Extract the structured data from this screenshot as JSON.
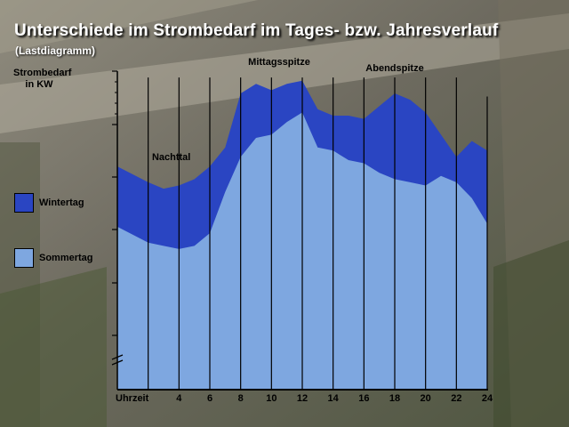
{
  "page": {
    "title": "Unterschiede im Strombedarf im Tages- bzw. Jahresverlauf",
    "subtitle": "(Lastdiagramm)"
  },
  "colors": {
    "winter": "#2a45c2",
    "summer": "#7ea7e0",
    "axis": "#000000"
  },
  "chart_data": {
    "type": "area",
    "ylabel": "Strombedarf in KW",
    "xlabel": "Uhrzeit",
    "xlim": [
      0,
      24
    ],
    "x_ticks": [
      4,
      6,
      8,
      10,
      12,
      14,
      16,
      18,
      20,
      22,
      24
    ],
    "grid": true,
    "legend_position": "left",
    "x": [
      0,
      2,
      3,
      4,
      5,
      6,
      7,
      8,
      9,
      10,
      11,
      12,
      13,
      14,
      15,
      16,
      17,
      18,
      19,
      20,
      21,
      22,
      23,
      24
    ],
    "series": [
      {
        "name": "Wintertag",
        "color": "#2a45c2",
        "values": [
          7.0,
          6.5,
          6.3,
          6.4,
          6.6,
          7.0,
          7.6,
          9.3,
          9.6,
          9.4,
          9.6,
          9.7,
          8.8,
          8.6,
          8.6,
          8.5,
          8.9,
          9.3,
          9.1,
          8.7,
          8.0,
          7.3,
          7.8,
          7.5
        ]
      },
      {
        "name": "Sommertag",
        "color": "#7ea7e0",
        "values": [
          5.1,
          4.6,
          4.5,
          4.4,
          4.5,
          4.9,
          6.2,
          7.3,
          7.9,
          8.0,
          8.4,
          8.7,
          7.6,
          7.5,
          7.2,
          7.1,
          6.8,
          6.6,
          6.5,
          6.4,
          6.7,
          6.5,
          6.0,
          5.2
        ]
      }
    ],
    "annotations": [
      {
        "text": "Nachttal",
        "x": 3.5,
        "y": 7.2
      },
      {
        "text": "Mittagsspitze",
        "x": 10.5,
        "y": 10.2
      },
      {
        "text": "Abendspitze",
        "x": 18,
        "y": 10.0
      }
    ]
  }
}
